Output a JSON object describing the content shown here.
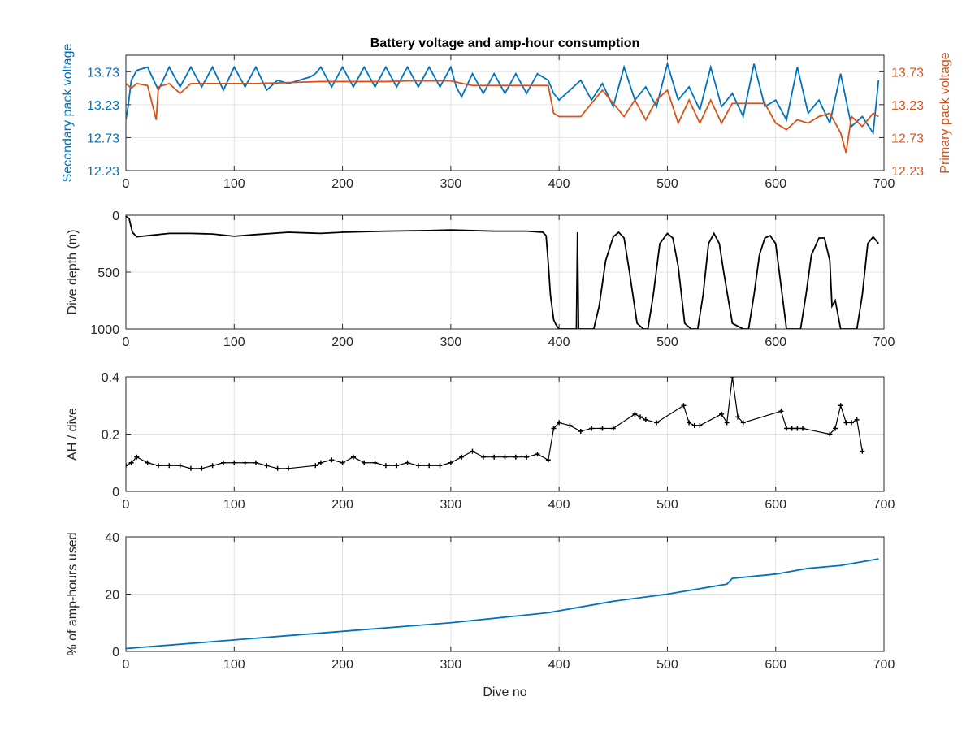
{
  "chart_data": [
    {
      "type": "line",
      "title": "Battery voltage and amp-hour consumption",
      "xlabel": "",
      "ylabel_left": "Secondary pack voltage",
      "ylabel_right": "Primary pack voltage",
      "xlim": [
        0,
        700
      ],
      "ylim": [
        12.23,
        13.98
      ],
      "xticks": [
        0,
        100,
        200,
        300,
        400,
        500,
        600,
        700
      ],
      "yticks": [
        12.23,
        12.73,
        13.23,
        13.73
      ],
      "ytick_labels": [
        "12.23",
        "12.73",
        "13.23",
        "13.73"
      ],
      "grid": true,
      "left_color": "#0072bd",
      "right_color": "#d95319",
      "series": [
        {
          "name": "Secondary pack voltage",
          "axis": "left",
          "color": "#0072bd",
          "x": [
            0,
            2,
            5,
            10,
            20,
            30,
            40,
            50,
            60,
            70,
            80,
            90,
            100,
            110,
            120,
            130,
            140,
            150,
            160,
            170,
            175,
            180,
            190,
            200,
            210,
            220,
            230,
            240,
            250,
            260,
            270,
            280,
            290,
            300,
            305,
            310,
            320,
            330,
            340,
            350,
            360,
            370,
            380,
            390,
            395,
            400,
            410,
            420,
            430,
            440,
            450,
            460,
            470,
            480,
            490,
            500,
            510,
            520,
            530,
            540,
            550,
            560,
            570,
            580,
            590,
            600,
            610,
            620,
            630,
            640,
            650,
            660,
            670,
            680,
            690,
            695
          ],
          "values": [
            13.0,
            13.2,
            13.6,
            13.75,
            13.8,
            13.45,
            13.8,
            13.5,
            13.8,
            13.5,
            13.8,
            13.45,
            13.8,
            13.5,
            13.8,
            13.45,
            13.6,
            13.55,
            13.6,
            13.65,
            13.7,
            13.8,
            13.5,
            13.8,
            13.5,
            13.8,
            13.5,
            13.8,
            13.5,
            13.8,
            13.5,
            13.8,
            13.5,
            13.8,
            13.5,
            13.35,
            13.7,
            13.4,
            13.7,
            13.4,
            13.7,
            13.4,
            13.7,
            13.6,
            13.4,
            13.3,
            13.45,
            13.6,
            13.3,
            13.55,
            13.2,
            13.8,
            13.3,
            13.5,
            13.2,
            13.85,
            13.3,
            13.5,
            13.15,
            13.8,
            13.2,
            13.4,
            13.05,
            13.85,
            13.2,
            13.3,
            13.0,
            13.8,
            13.1,
            13.3,
            12.95,
            13.7,
            12.9,
            13.05,
            12.8,
            13.6
          ]
        },
        {
          "name": "Primary pack voltage",
          "axis": "right",
          "color": "#d95319",
          "x": [
            0,
            5,
            10,
            20,
            28,
            30,
            40,
            50,
            60,
            80,
            100,
            120,
            140,
            160,
            180,
            200,
            220,
            240,
            260,
            280,
            300,
            320,
            340,
            360,
            380,
            390,
            395,
            400,
            410,
            420,
            440,
            460,
            470,
            480,
            490,
            500,
            510,
            520,
            530,
            540,
            550,
            560,
            570,
            580,
            590,
            600,
            610,
            620,
            630,
            640,
            650,
            660,
            665,
            670,
            680,
            690,
            695
          ],
          "values": [
            13.55,
            13.48,
            13.55,
            13.52,
            13.0,
            13.5,
            13.55,
            13.4,
            13.55,
            13.55,
            13.55,
            13.55,
            13.56,
            13.57,
            13.58,
            13.58,
            13.58,
            13.58,
            13.59,
            13.59,
            13.59,
            13.52,
            13.52,
            13.52,
            13.52,
            13.52,
            13.1,
            13.05,
            13.05,
            13.05,
            13.45,
            13.05,
            13.3,
            13.0,
            13.3,
            13.45,
            12.95,
            13.3,
            12.95,
            13.3,
            12.95,
            13.25,
            13.25,
            13.25,
            13.25,
            12.95,
            12.85,
            13.0,
            12.95,
            13.05,
            13.1,
            12.8,
            12.5,
            13.05,
            12.9,
            13.1,
            13.05
          ]
        }
      ]
    },
    {
      "type": "line",
      "title": "",
      "xlabel": "",
      "ylabel": "Dive depth (m)",
      "xlim": [
        0,
        700
      ],
      "ylim": [
        0,
        1000
      ],
      "y_reversed": true,
      "xticks": [
        0,
        100,
        200,
        300,
        400,
        500,
        600,
        700
      ],
      "yticks": [
        0,
        500,
        1000
      ],
      "grid": true,
      "series": [
        {
          "color": "#000000",
          "x": [
            0,
            3,
            6,
            10,
            20,
            40,
            60,
            80,
            100,
            120,
            150,
            180,
            200,
            240,
            280,
            300,
            340,
            370,
            385,
            388,
            390,
            392,
            395,
            397,
            400,
            410,
            416,
            417,
            418,
            419,
            420,
            421,
            425,
            432,
            437,
            443,
            450,
            455,
            460,
            465,
            472,
            478,
            482,
            487,
            493,
            500,
            505,
            510,
            516,
            522,
            528,
            533,
            538,
            543,
            548,
            552,
            560,
            570,
            575,
            580,
            585,
            590,
            595,
            600,
            610,
            618,
            623,
            628,
            633,
            640,
            645,
            650,
            652,
            655,
            657,
            660,
            668,
            675,
            680,
            685,
            690,
            695
          ],
          "values": [
            10,
            30,
            150,
            190,
            180,
            160,
            160,
            165,
            185,
            170,
            150,
            160,
            150,
            140,
            135,
            130,
            140,
            140,
            150,
            180,
            420,
            700,
            920,
            960,
            1000,
            1000,
            1000,
            150,
            1000,
            1000,
            1000,
            1000,
            1000,
            1000,
            800,
            400,
            190,
            150,
            200,
            500,
            950,
            1000,
            1000,
            700,
            250,
            160,
            200,
            450,
            950,
            1000,
            1000,
            700,
            250,
            160,
            250,
            500,
            950,
            1000,
            1000,
            700,
            350,
            200,
            180,
            250,
            1000,
            1000,
            1000,
            700,
            350,
            200,
            200,
            400,
            800,
            750,
            850,
            1000,
            1000,
            1000,
            700,
            250,
            190,
            250
          ]
        }
      ]
    },
    {
      "type": "scatter",
      "title": "",
      "xlabel": "",
      "ylabel": "AH / dive",
      "xlim": [
        0,
        700
      ],
      "ylim": [
        0,
        0.4
      ],
      "xticks": [
        0,
        100,
        200,
        300,
        400,
        500,
        600,
        700
      ],
      "yticks": [
        0,
        0.2,
        0.4
      ],
      "ytick_labels": [
        "0",
        "0.2",
        "0.4"
      ],
      "grid": true,
      "series": [
        {
          "color": "#000000",
          "x": [
            0,
            5,
            10,
            20,
            30,
            40,
            50,
            60,
            70,
            80,
            90,
            100,
            110,
            120,
            130,
            140,
            150,
            175,
            180,
            190,
            200,
            210,
            220,
            230,
            240,
            250,
            260,
            270,
            280,
            290,
            300,
            310,
            320,
            330,
            340,
            350,
            360,
            370,
            380,
            390,
            395,
            400,
            410,
            420,
            430,
            440,
            450,
            470,
            475,
            480,
            490,
            515,
            520,
            525,
            530,
            550,
            555,
            560,
            565,
            570,
            605,
            610,
            615,
            620,
            625,
            650,
            655,
            660,
            665,
            670,
            675,
            680
          ],
          "values": [
            0.09,
            0.1,
            0.12,
            0.1,
            0.09,
            0.09,
            0.09,
            0.08,
            0.08,
            0.09,
            0.1,
            0.1,
            0.1,
            0.1,
            0.09,
            0.08,
            0.08,
            0.09,
            0.1,
            0.11,
            0.1,
            0.12,
            0.1,
            0.1,
            0.09,
            0.09,
            0.1,
            0.09,
            0.09,
            0.09,
            0.1,
            0.12,
            0.14,
            0.12,
            0.12,
            0.12,
            0.12,
            0.12,
            0.13,
            0.11,
            0.22,
            0.24,
            0.23,
            0.21,
            0.22,
            0.22,
            0.22,
            0.27,
            0.26,
            0.25,
            0.24,
            0.3,
            0.24,
            0.23,
            0.23,
            0.27,
            0.24,
            0.4,
            0.26,
            0.24,
            0.28,
            0.22,
            0.22,
            0.22,
            0.22,
            0.2,
            0.22,
            0.3,
            0.24,
            0.24,
            0.25,
            0.14
          ]
        }
      ]
    },
    {
      "type": "line",
      "title": "",
      "xlabel": "Dive no",
      "ylabel": "% of amp-hours used",
      "xlim": [
        0,
        700
      ],
      "ylim": [
        0,
        40
      ],
      "xticks": [
        0,
        100,
        200,
        300,
        400,
        500,
        600,
        700
      ],
      "yticks": [
        0,
        20,
        40
      ],
      "grid": true,
      "series": [
        {
          "color": "#0072bd",
          "x": [
            0,
            100,
            200,
            300,
            390,
            450,
            500,
            555,
            560,
            600,
            630,
            660,
            695
          ],
          "values": [
            1,
            4,
            7,
            10,
            13.5,
            17.5,
            20,
            23.5,
            25.5,
            27,
            29,
            30,
            32.3
          ]
        }
      ]
    }
  ]
}
